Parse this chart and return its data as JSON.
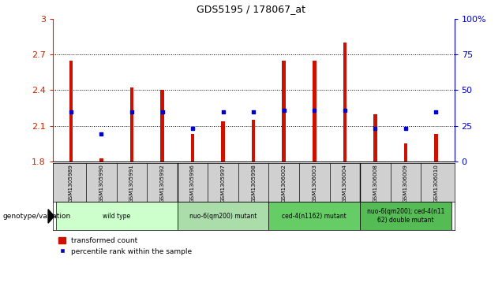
{
  "title": "GDS5195 / 178067_at",
  "samples": [
    "GSM1305989",
    "GSM1305990",
    "GSM1305991",
    "GSM1305992",
    "GSM1305996",
    "GSM1305997",
    "GSM1305998",
    "GSM1306002",
    "GSM1306003",
    "GSM1306004",
    "GSM1306008",
    "GSM1306009",
    "GSM1306010"
  ],
  "red_values": [
    2.65,
    1.83,
    2.42,
    2.4,
    2.03,
    2.14,
    2.15,
    2.65,
    2.65,
    2.8,
    2.2,
    1.95,
    2.03
  ],
  "blue_values": [
    2.22,
    2.03,
    2.22,
    2.22,
    2.08,
    2.22,
    2.22,
    2.23,
    2.23,
    2.23,
    2.08,
    2.08,
    2.22
  ],
  "baseline": 1.8,
  "ylim_left": [
    1.8,
    3.0
  ],
  "ylim_right": [
    0,
    100
  ],
  "yticks_left": [
    1.8,
    2.1,
    2.4,
    2.7,
    3.0
  ],
  "yticks_right": [
    0,
    25,
    50,
    75,
    100
  ],
  "ytick_labels_left": [
    "1.8",
    "2.1",
    "2.4",
    "2.7",
    "3"
  ],
  "ytick_labels_right": [
    "0",
    "25",
    "50",
    "75",
    "100%"
  ],
  "hlines": [
    2.1,
    2.4,
    2.7
  ],
  "group_starts": [
    0,
    4,
    7,
    10
  ],
  "group_ends": [
    4,
    7,
    10,
    13
  ],
  "group_labels": [
    "wild type",
    "nuo-6(qm200) mutant",
    "ced-4(n1162) mutant",
    "nuo-6(qm200); ced-4(n11\n62) double mutant"
  ],
  "group_colors": [
    "#ccffcc",
    "#aaddaa",
    "#66cc66",
    "#55bb55"
  ],
  "bar_color": "#cc1100",
  "blue_color": "#0000cc",
  "label_color": "#cc2200",
  "right_axis_color": "#0000cc",
  "sample_bg_color": "#d0d0d0",
  "plot_bg": "#ffffff",
  "legend_red": "transformed count",
  "legend_blue": "percentile rank within the sample",
  "xlabel_left": "genotype/variation",
  "bar_width": 0.12
}
